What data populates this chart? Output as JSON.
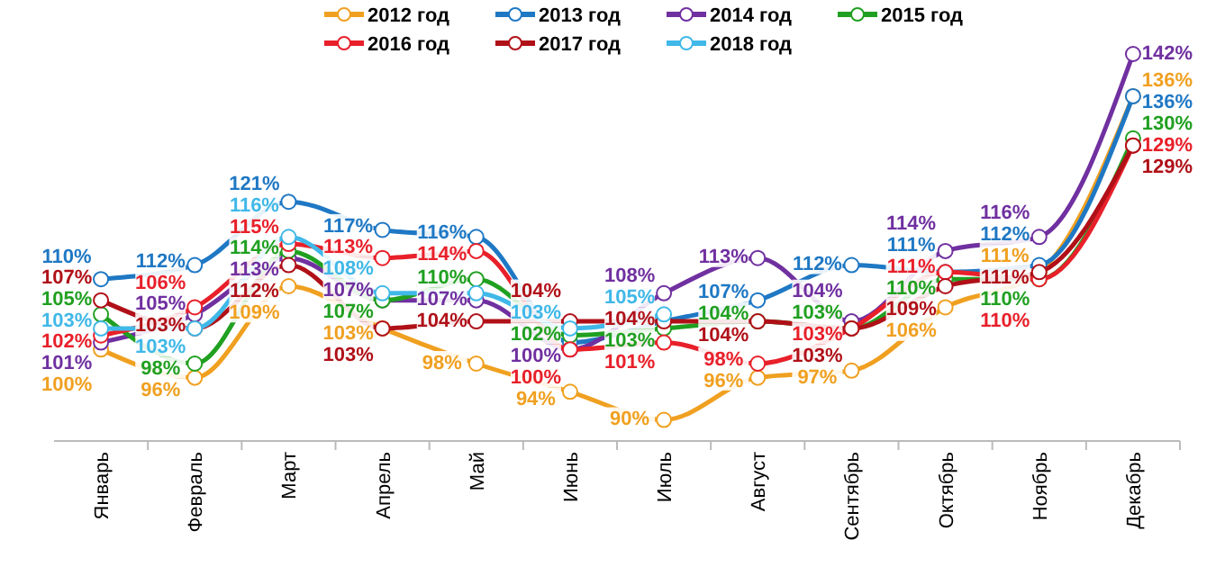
{
  "chart_data": {
    "type": "line",
    "categories": [
      "Январь",
      "Февраль",
      "Март",
      "Апрель",
      "Май",
      "Июнь",
      "Июль",
      "Август",
      "Сентябрь",
      "Октябрь",
      "Ноябрь",
      "Декабрь"
    ],
    "tick_labels": "x",
    "legend": "top",
    "marker": "circle",
    "line_style": "solid",
    "series": [
      {
        "name": "2012 год",
        "color": "#f0a020",
        "values": [
          100,
          96,
          109,
          103,
          98,
          94,
          90,
          96,
          97,
          106,
          111,
          136
        ],
        "value_labels": [
          "100%",
          "96%",
          "109%",
          "103%",
          "98%",
          "94%",
          "90%",
          "96%",
          "97%",
          "106%",
          "111%",
          "136%"
        ]
      },
      {
        "name": "2013 год",
        "color": "#1f78c4",
        "values": [
          110,
          112,
          121,
          117,
          116,
          101,
          104,
          107,
          112,
          111,
          112,
          136
        ],
        "value_labels": [
          "110%",
          "112%",
          "121%",
          "117%",
          "116%",
          null,
          null,
          "107%",
          "112%",
          "111%",
          "112%",
          "136%"
        ]
      },
      {
        "name": "2014 год",
        "color": "#7030a0",
        "values": [
          101,
          105,
          113,
          107,
          107,
          100,
          108,
          113,
          104,
          114,
          116,
          142
        ],
        "value_labels": [
          "101%",
          "105%",
          "113%",
          "107%",
          "107%",
          "100%",
          "108%",
          "113%",
          "104%",
          "114%",
          "116%",
          "142%"
        ]
      },
      {
        "name": "2015 год",
        "color": "#20a020",
        "values": [
          105,
          98,
          114,
          107,
          110,
          102,
          103,
          104,
          103,
          110,
          110,
          130
        ],
        "value_labels": [
          "105%",
          "98%",
          "114%",
          "107%",
          "110%",
          "102%",
          "103%",
          "104%",
          "103%",
          "110%",
          "110%",
          "130%"
        ]
      },
      {
        "name": "2016 год",
        "color": "#e8202a",
        "values": [
          102,
          106,
          115,
          113,
          114,
          100,
          101,
          98,
          103,
          111,
          110,
          129
        ],
        "value_labels": [
          "102%",
          "106%",
          "115%",
          "113%",
          "114%",
          "100%",
          "101%",
          "98%",
          "103%",
          "111%",
          "110%",
          "129%"
        ]
      },
      {
        "name": "2017 год",
        "color": "#b01018",
        "values": [
          107,
          103,
          112,
          103,
          104,
          104,
          104,
          104,
          103,
          109,
          111,
          129
        ],
        "value_labels": [
          "107%",
          "103%",
          "112%",
          "103%",
          "104%",
          "104%",
          "104%",
          "104%",
          "103%",
          "109%",
          "111%",
          "129%"
        ]
      },
      {
        "name": "2018 год",
        "color": "#40b8e8",
        "values": [
          103,
          103,
          116,
          108,
          108,
          103,
          105,
          null,
          null,
          null,
          null,
          null
        ],
        "value_labels": [
          "103%",
          "103%",
          "116%",
          "108%",
          null,
          "103%",
          "105%",
          null,
          null,
          null,
          null,
          null
        ]
      }
    ]
  }
}
